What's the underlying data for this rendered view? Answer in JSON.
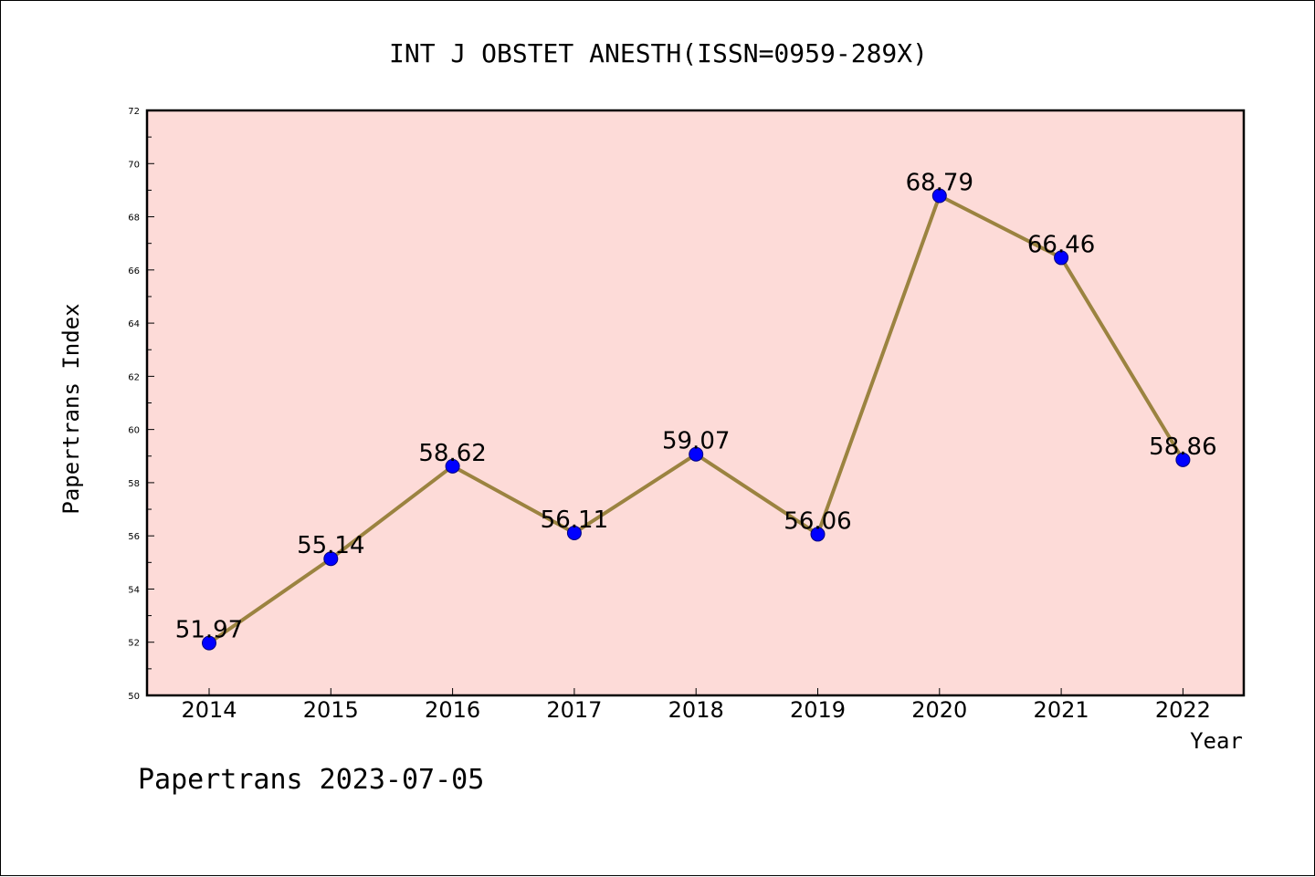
{
  "chart_data": {
    "type": "line",
    "title": "INT J OBSTET ANESTH(ISSN=0959-289X)",
    "xlabel": "Year",
    "ylabel": "Papertrans Index",
    "categories": [
      "2014",
      "2015",
      "2016",
      "2017",
      "2018",
      "2019",
      "2020",
      "2021",
      "2022"
    ],
    "series": [
      {
        "values": [
          51.97,
          55.14,
          58.62,
          56.11,
          59.07,
          56.06,
          68.79,
          66.46,
          58.86
        ],
        "color": "#9b8340",
        "marker_color": "#0000ff"
      }
    ],
    "data_labels": [
      "51.97",
      "55.14",
      "58.62",
      "56.11",
      "59.07",
      "56.06",
      "68.79",
      "66.46",
      "58.86"
    ],
    "ylim": [
      50,
      72
    ],
    "yticks": [
      "50",
      "52",
      "54",
      "56",
      "58",
      "60",
      "62",
      "64",
      "66",
      "68",
      "70",
      "72"
    ],
    "plot_background": "#fddbd8",
    "grid": false,
    "legend": "none"
  },
  "footer": {
    "text": "Papertrans 2023-07-05"
  }
}
